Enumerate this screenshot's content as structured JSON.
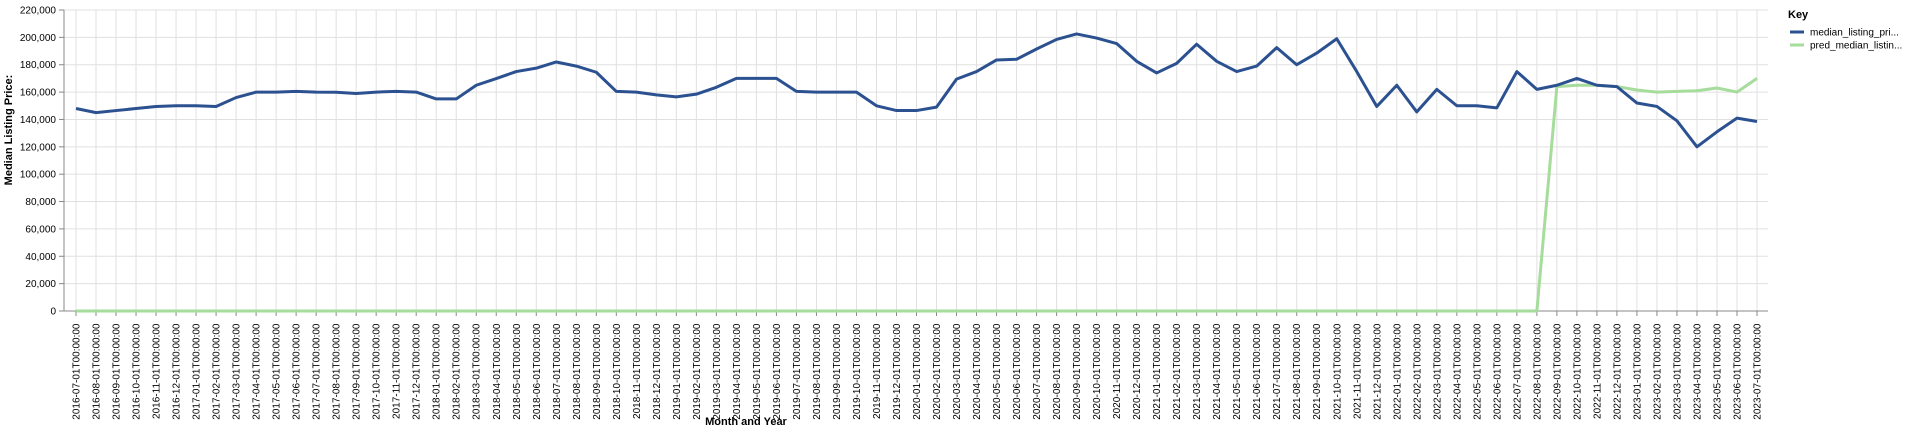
{
  "chart_data": {
    "type": "line",
    "y_label": "Median Listing Price:",
    "x_label": "Month and Year",
    "legend_title": "Key",
    "legend": "right",
    "grid": true,
    "categories": [
      "2016-07-01T00:00:00",
      "2016-08-01T00:00:00",
      "2016-09-01T00:00:00",
      "2016-10-01T00:00:00",
      "2016-11-01T00:00:00",
      "2016-12-01T00:00:00",
      "2017-01-01T00:00:00",
      "2017-02-01T00:00:00",
      "2017-03-01T00:00:00",
      "2017-04-01T00:00:00",
      "2017-05-01T00:00:00",
      "2017-06-01T00:00:00",
      "2017-07-01T00:00:00",
      "2017-08-01T00:00:00",
      "2017-09-01T00:00:00",
      "2017-10-01T00:00:00",
      "2017-11-01T00:00:00",
      "2017-12-01T00:00:00",
      "2018-01-01T00:00:00",
      "2018-02-01T00:00:00",
      "2018-03-01T00:00:00",
      "2018-04-01T00:00:00",
      "2018-05-01T00:00:00",
      "2018-06-01T00:00:00",
      "2018-07-01T00:00:00",
      "2018-08-01T00:00:00",
      "2018-09-01T00:00:00",
      "2018-10-01T00:00:00",
      "2018-11-01T00:00:00",
      "2018-12-01T00:00:00",
      "2019-01-01T00:00:00",
      "2019-02-01T00:00:00",
      "2019-03-01T00:00:00",
      "2019-04-01T00:00:00",
      "2019-05-01T00:00:00",
      "2019-06-01T00:00:00",
      "2019-07-01T00:00:00",
      "2019-08-01T00:00:00",
      "2019-09-01T00:00:00",
      "2019-10-01T00:00:00",
      "2019-11-01T00:00:00",
      "2019-12-01T00:00:00",
      "2020-01-01T00:00:00",
      "2020-02-01T00:00:00",
      "2020-03-01T00:00:00",
      "2020-04-01T00:00:00",
      "2020-05-01T00:00:00",
      "2020-06-01T00:00:00",
      "2020-07-01T00:00:00",
      "2020-08-01T00:00:00",
      "2020-09-01T00:00:00",
      "2020-10-01T00:00:00",
      "2020-11-01T00:00:00",
      "2020-12-01T00:00:00",
      "2021-01-01T00:00:00",
      "2021-02-01T00:00:00",
      "2021-03-01T00:00:00",
      "2021-04-01T00:00:00",
      "2021-05-01T00:00:00",
      "2021-06-01T00:00:00",
      "2021-07-01T00:00:00",
      "2021-08-01T00:00:00",
      "2021-09-01T00:00:00",
      "2021-10-01T00:00:00",
      "2021-11-01T00:00:00",
      "2021-12-01T00:00:00",
      "2022-01-01T00:00:00",
      "2022-02-01T00:00:00",
      "2022-03-01T00:00:00",
      "2022-04-01T00:00:00",
      "2022-05-01T00:00:00",
      "2022-06-01T00:00:00",
      "2022-07-01T00:00:00",
      "2022-08-01T00:00:00",
      "2022-09-01T00:00:00",
      "2022-10-01T00:00:00",
      "2022-11-01T00:00:00",
      "2022-12-01T00:00:00",
      "2023-01-01T00:00:00",
      "2023-02-01T00:00:00",
      "2023-03-01T00:00:00",
      "2023-04-01T00:00:00",
      "2023-05-01T00:00:00",
      "2023-06-01T00:00:00",
      "2023-07-01T00:00:00"
    ],
    "series": [
      {
        "name": "median_listing_pri...",
        "color": "#2c5190",
        "values": [
          148000,
          145000,
          146500,
          148000,
          149500,
          150000,
          150000,
          149500,
          156000,
          160000,
          160000,
          160500,
          160000,
          159900,
          159000,
          160000,
          160500,
          160000,
          155000,
          155000,
          165000,
          169900,
          175000,
          177500,
          182000,
          179000,
          174500,
          160500,
          160000,
          158000,
          156500,
          158500,
          163500,
          170000,
          170000,
          170000,
          160500,
          160000,
          160000,
          160000,
          150000,
          146500,
          146500,
          149000,
          169500,
          175000,
          183500,
          184000,
          191500,
          198500,
          202500,
          199500,
          195500,
          182500,
          174000,
          181000,
          195000,
          182500,
          175000,
          179000,
          192500,
          180000,
          188500,
          199000,
          175000,
          149500,
          165000,
          145500,
          162000,
          150000,
          150000,
          148500,
          175000,
          162000,
          165000,
          170000,
          165000,
          164000,
          152000,
          149500,
          139000,
          120000,
          131000,
          141000,
          138500
        ]
      },
      {
        "name": "pred_median_listin...",
        "color": "#a6dc9c",
        "values": [
          0,
          0,
          0,
          0,
          0,
          0,
          0,
          0,
          0,
          0,
          0,
          0,
          0,
          0,
          0,
          0,
          0,
          0,
          0,
          0,
          0,
          0,
          0,
          0,
          0,
          0,
          0,
          0,
          0,
          0,
          0,
          0,
          0,
          0,
          0,
          0,
          0,
          0,
          0,
          0,
          0,
          0,
          0,
          0,
          0,
          0,
          0,
          0,
          0,
          0,
          0,
          0,
          0,
          0,
          0,
          0,
          0,
          0,
          0,
          0,
          0,
          0,
          0,
          0,
          0,
          0,
          0,
          0,
          0,
          0,
          0,
          0,
          0,
          0,
          164000,
          165000,
          165000,
          164000,
          161500,
          160000,
          160500,
          161000,
          163000,
          160000,
          170000
        ]
      }
    ],
    "ylim": [
      0,
      220000
    ],
    "yticks": [
      0,
      {
        "value": 20000,
        "label": "20,000"
      },
      {
        "value": 40000,
        "label": "40,000"
      },
      {
        "value": 60000,
        "label": "60,000"
      },
      {
        "value": 80000,
        "label": "80,000"
      },
      {
        "value": 100000,
        "label": "100,000"
      },
      {
        "value": 120000,
        "label": "120,000"
      },
      {
        "value": 140000,
        "label": "140,000"
      },
      {
        "value": 160000,
        "label": "160,000"
      },
      {
        "value": 180000,
        "label": "180,000"
      },
      {
        "value": 200000,
        "label": "200,000"
      },
      {
        "value": 220000,
        "label": "220,000"
      }
    ]
  }
}
